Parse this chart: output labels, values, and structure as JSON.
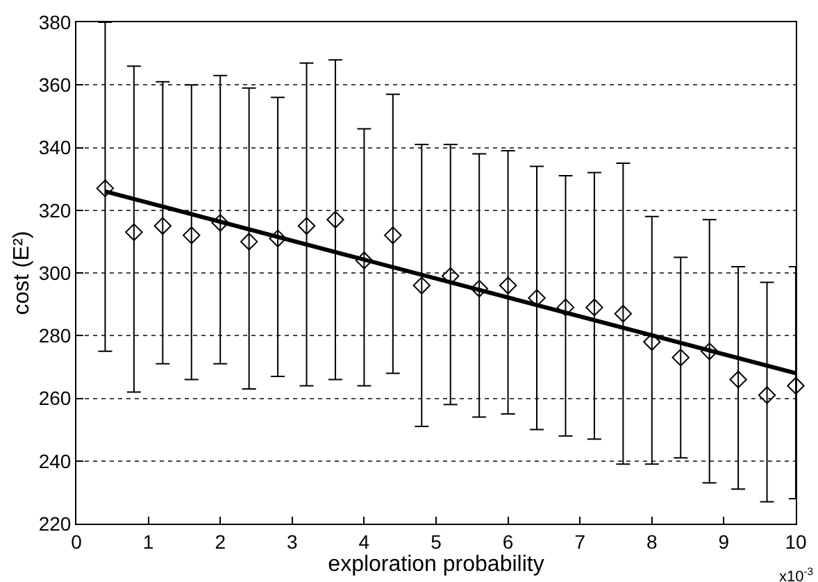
{
  "chart_data": {
    "type": "scatter",
    "xlabel": "exploration probability",
    "ylabel": "cost (E²)",
    "xlim": [
      0,
      10
    ],
    "xticks": [
      0,
      1,
      2,
      3,
      4,
      5,
      6,
      7,
      8,
      9,
      10
    ],
    "ylim": [
      220,
      380
    ],
    "yticks": [
      220,
      240,
      260,
      280,
      300,
      320,
      340,
      360,
      380
    ],
    "grid": "y",
    "annotations": [
      "x10$^{-3}$"
    ],
    "series": [
      {
        "color": "#000000",
        "marker": "diamond",
        "x": [
          0.4,
          0.8,
          1.2,
          1.6,
          2.0,
          2.4,
          2.8,
          3.2,
          3.6,
          4.0,
          4.4,
          4.8,
          5.2,
          5.6,
          6.0,
          6.4,
          6.8,
          7.2,
          7.6,
          8.0,
          8.4,
          8.8,
          9.2,
          9.6,
          10
        ],
        "values": [
          327,
          313,
          315,
          312,
          316,
          310,
          311,
          315,
          317,
          304,
          312,
          296,
          299,
          295,
          296,
          292,
          289,
          289,
          287,
          278,
          273,
          275,
          266,
          261,
          264
        ],
        "errors": [
          [
            275,
            380
          ],
          [
            262,
            366
          ],
          [
            271,
            361
          ],
          [
            266,
            360
          ],
          [
            271,
            363
          ],
          [
            263,
            359
          ],
          [
            267,
            356
          ],
          [
            264,
            367
          ],
          [
            266,
            368
          ],
          [
            264,
            346
          ],
          [
            268,
            357
          ],
          [
            251,
            341
          ],
          [
            258,
            341
          ],
          [
            254,
            338
          ],
          [
            255,
            339
          ],
          [
            250,
            334
          ],
          [
            248,
            331
          ],
          [
            247,
            332
          ],
          [
            239,
            335
          ],
          [
            239,
            318
          ],
          [
            241,
            305
          ],
          [
            233,
            317
          ],
          [
            231,
            302
          ],
          [
            227,
            297
          ],
          [
            228,
            302
          ]
        ]
      },
      {
        "type": "line",
        "color": "#000000",
        "marker": "none",
        "line_style": "solid",
        "x": [
          0.4,
          10
        ],
        "values": [
          326,
          268
        ]
      }
    ]
  }
}
